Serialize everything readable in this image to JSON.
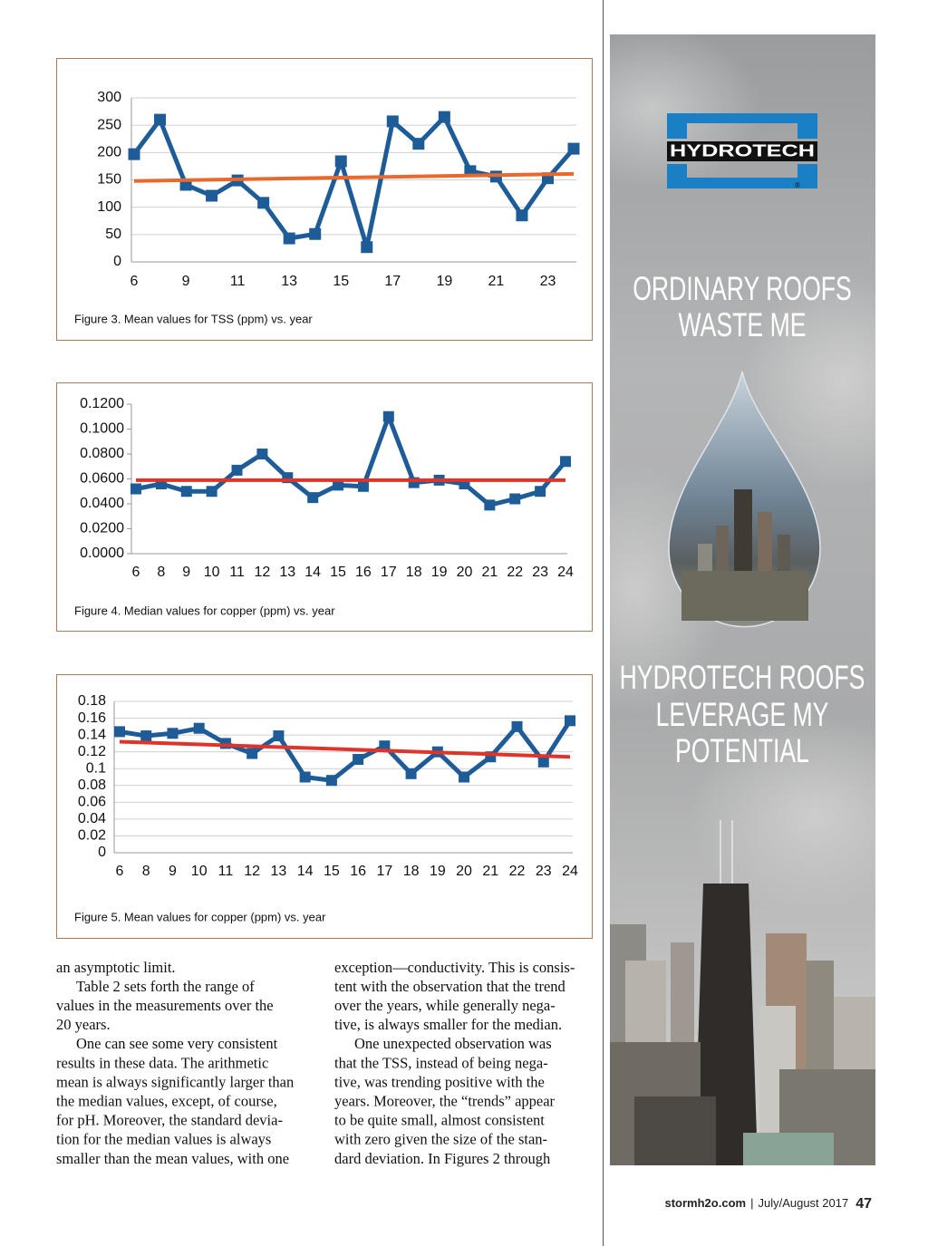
{
  "chart_data": [
    {
      "type": "line",
      "caption": "Figure 3. Mean values for TSS (ppm) vs. year",
      "categories": [
        6,
        null,
        9,
        null,
        11,
        null,
        13,
        null,
        15,
        null,
        17,
        null,
        19,
        null,
        21,
        null,
        23,
        null
      ],
      "series": [
        {
          "color": "#1d5c97",
          "values": [
            197,
            260,
            141,
            121,
            149,
            108,
            43,
            51,
            184,
            27,
            257,
            216,
            265,
            166,
            156,
            85,
            153,
            207
          ]
        }
      ],
      "trendline": {
        "color": "#e8692e",
        "values": [
          148,
          161
        ]
      },
      "ylim": [
        0,
        300
      ],
      "yticks": [
        0,
        50,
        100,
        150,
        200,
        250,
        300
      ],
      "grid": true
    },
    {
      "type": "line",
      "caption": "Figure 4. Median values for copper (ppm) vs. year",
      "categories": [
        6,
        8,
        9,
        10,
        11,
        12,
        13,
        14,
        15,
        16,
        17,
        18,
        19,
        20,
        21,
        22,
        23,
        24
      ],
      "series": [
        {
          "color": "#1d5c97",
          "values": [
            0.052,
            0.056,
            0.05,
            0.05,
            0.067,
            0.08,
            0.061,
            0.045,
            0.055,
            0.054,
            0.11,
            0.057,
            0.059,
            0.056,
            0.039,
            0.044,
            0.05,
            0.074
          ]
        }
      ],
      "trendline": {
        "color": "#e0342a",
        "values": [
          0.059,
          0.059
        ]
      },
      "ylim": [
        0,
        0.12
      ],
      "yticks": [
        {
          "value": 0,
          "label": "0.0000"
        },
        {
          "value": 0.02,
          "label": "0.0200"
        },
        {
          "value": 0.04,
          "label": "0.0400"
        },
        {
          "value": 0.06,
          "label": "0.0600"
        },
        {
          "value": 0.08,
          "label": "0.0800"
        },
        {
          "value": 0.1,
          "label": "0.1000"
        },
        {
          "value": 0.12,
          "label": "0.1200"
        }
      ],
      "grid": false
    },
    {
      "type": "line",
      "caption": "Figure 5. Mean values for copper (ppm) vs. year",
      "categories": [
        6,
        8,
        9,
        10,
        11,
        12,
        13,
        14,
        15,
        16,
        17,
        18,
        19,
        20,
        21,
        22,
        23,
        24
      ],
      "series": [
        {
          "color": "#1d5c97",
          "values": [
            0.144,
            0.139,
            0.142,
            0.148,
            0.13,
            0.118,
            0.139,
            0.09,
            0.086,
            0.111,
            0.127,
            0.094,
            0.12,
            0.09,
            0.114,
            0.15,
            0.108,
            0.157
          ]
        }
      ],
      "trendline": {
        "color": "#e0342a",
        "values": [
          0.132,
          0.114
        ]
      },
      "ylim": [
        0,
        0.18
      ],
      "yticks": [
        0,
        0.02,
        0.04,
        0.06,
        0.08,
        0.1,
        0.12,
        0.14,
        0.16,
        0.18
      ],
      "grid": true
    }
  ],
  "body": {
    "columns": [
      [
        [
          "an asymptotic limit."
        ],
        [
          "Table 2 sets forth the range of",
          "values in the measurements over the",
          "20 years."
        ],
        [
          "One can see some very consistent",
          "results in these data. The arithmetic",
          "mean is always significantly larger than",
          "the median values, except, of course,",
          "for pH. Moreover, the standard devia-",
          "tion for the median values is always",
          "smaller than the mean values, with one"
        ]
      ],
      [
        [
          "exception—conductivity. This is consis-",
          "tent with the observation that the trend",
          "over the years, while generally nega-",
          "tive, is always smaller for the median."
        ],
        [
          "One unexpected observation was",
          "that the TSS, instead of being nega-",
          "tive, was trending positive with the",
          "years. Moreover, the “trends” appear",
          "to be quite small, almost consistent",
          "with zero given the size of the stan-",
          "dard deviation. In Figures 2 through"
        ]
      ]
    ]
  },
  "ad": {
    "logo": "HYDROTECH",
    "registered": "®",
    "headline": [
      "ORDINARY ROOFS",
      "WASTE ME"
    ],
    "tagline": [
      "HYDROTECH ROOFS",
      "LEVERAGE MY",
      "POTENTIAL"
    ]
  },
  "footer": {
    "site": "stormh2o.com",
    "separator": "|",
    "issue": "July/August 2017",
    "page": "47"
  }
}
